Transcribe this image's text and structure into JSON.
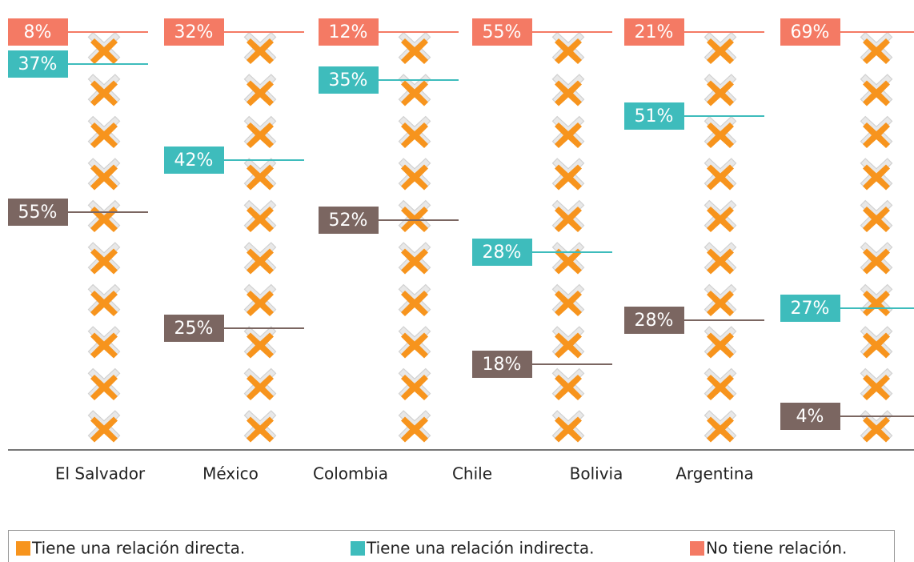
{
  "chart_data": {
    "type": "stacked-labels",
    "categories": [
      "El Salvador",
      "México",
      "Colombia",
      "Chile",
      "Bolivia",
      "Argentina"
    ],
    "series": [
      {
        "name": "No tiene relación.",
        "color": "#f47a64",
        "label_color": "#f47a64",
        "values": [
          8,
          32,
          12,
          55,
          21,
          69
        ],
        "value_labels": [
          "8%",
          "32%",
          "12%",
          "55%",
          "21%",
          "69%"
        ]
      },
      {
        "name": "Tiene una relación indirecta.",
        "color": "#3ebcbc",
        "label_color": "#3ebcbc",
        "values": [
          37,
          42,
          35,
          28,
          51,
          27
        ],
        "value_labels": [
          "37%",
          "42%",
          "35%",
          "28%",
          "51%",
          "27%"
        ]
      },
      {
        "name": "Tiene una relación directa.",
        "color": "#f7941d",
        "label_color": "#7b6661",
        "values": [
          55,
          25,
          52,
          18,
          28,
          4
        ],
        "value_labels": [
          "55%",
          "25%",
          "52%",
          "18%",
          "28%",
          "4%"
        ]
      }
    ],
    "legend_order": [
      2,
      1,
      0
    ]
  }
}
